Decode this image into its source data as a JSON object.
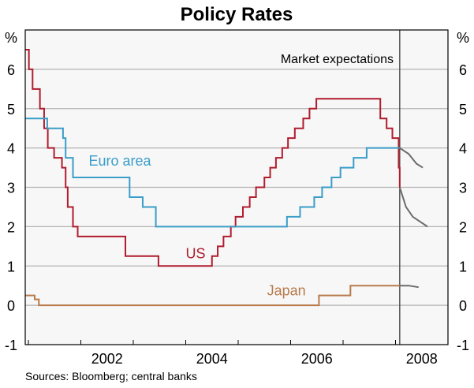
{
  "chart_data": {
    "type": "line",
    "title": "Policy Rates",
    "ylabel_left": "%",
    "ylabel_right": "%",
    "ylim": [
      -1,
      7
    ],
    "xlim": [
      2000.94,
      2009.0
    ],
    "yticks": [
      -1,
      0,
      1,
      2,
      3,
      4,
      5,
      6
    ],
    "xtick_labels": [
      "2002",
      "2004",
      "2006",
      "2008"
    ],
    "xtick_label_positions": [
      2002.5,
      2004.5,
      2006.5,
      2008.5
    ],
    "year_ticks": [
      2001,
      2002,
      2003,
      2004,
      2005,
      2006,
      2007,
      2008
    ],
    "grid": true,
    "source": "Sources: Bloomberg; central banks",
    "divider_x": 2008.08,
    "annotations": {
      "market": "Market expectations"
    },
    "series": [
      {
        "name": "US",
        "color": "#b01c2e",
        "step": true,
        "end": 2008.08,
        "points": [
          [
            2000.94,
            6.5
          ],
          [
            2001.01,
            6.0
          ],
          [
            2001.08,
            5.5
          ],
          [
            2001.22,
            5.0
          ],
          [
            2001.3,
            4.5
          ],
          [
            2001.37,
            4.0
          ],
          [
            2001.49,
            3.75
          ],
          [
            2001.64,
            3.5
          ],
          [
            2001.71,
            3.0
          ],
          [
            2001.75,
            2.5
          ],
          [
            2001.85,
            2.0
          ],
          [
            2001.94,
            1.75
          ],
          [
            2002.85,
            1.25
          ],
          [
            2003.48,
            1.0
          ],
          [
            2004.5,
            1.25
          ],
          [
            2004.61,
            1.5
          ],
          [
            2004.72,
            1.75
          ],
          [
            2004.86,
            2.0
          ],
          [
            2004.95,
            2.25
          ],
          [
            2005.09,
            2.5
          ],
          [
            2005.22,
            2.75
          ],
          [
            2005.34,
            3.0
          ],
          [
            2005.5,
            3.25
          ],
          [
            2005.61,
            3.5
          ],
          [
            2005.72,
            3.75
          ],
          [
            2005.84,
            4.0
          ],
          [
            2005.95,
            4.25
          ],
          [
            2006.08,
            4.5
          ],
          [
            2006.24,
            4.75
          ],
          [
            2006.36,
            5.0
          ],
          [
            2006.49,
            5.25
          ],
          [
            2007.71,
            4.75
          ],
          [
            2007.83,
            4.5
          ],
          [
            2007.94,
            4.25
          ],
          [
            2008.06,
            3.5
          ],
          [
            2008.08,
            3.0
          ]
        ]
      },
      {
        "name": "Euro area",
        "color": "#3a9dc8",
        "step": true,
        "end": 2008.08,
        "points": [
          [
            2000.94,
            4.75
          ],
          [
            2001.36,
            4.5
          ],
          [
            2001.66,
            4.25
          ],
          [
            2001.71,
            3.75
          ],
          [
            2001.85,
            3.25
          ],
          [
            2002.93,
            2.75
          ],
          [
            2003.18,
            2.5
          ],
          [
            2003.43,
            2.0
          ],
          [
            2005.93,
            2.25
          ],
          [
            2006.18,
            2.5
          ],
          [
            2006.45,
            2.75
          ],
          [
            2006.6,
            3.0
          ],
          [
            2006.78,
            3.25
          ],
          [
            2006.95,
            3.5
          ],
          [
            2007.2,
            3.75
          ],
          [
            2007.45,
            4.0
          ]
        ]
      },
      {
        "name": "Japan",
        "color": "#b87a4b",
        "step": true,
        "end": 2008.08,
        "points": [
          [
            2000.94,
            0.25
          ],
          [
            2001.12,
            0.15
          ],
          [
            2001.2,
            0.0
          ],
          [
            2006.54,
            0.25
          ],
          [
            2007.14,
            0.5
          ]
        ]
      },
      {
        "name": "US expectations",
        "color": "#6b6b6b",
        "step": false,
        "points": [
          [
            2008.08,
            3.0
          ],
          [
            2008.2,
            2.5
          ],
          [
            2008.33,
            2.25
          ],
          [
            2008.61,
            2.0
          ]
        ]
      },
      {
        "name": "Euro area expectations",
        "color": "#6b6b6b",
        "step": false,
        "points": [
          [
            2008.08,
            4.0
          ],
          [
            2008.25,
            3.85
          ],
          [
            2008.4,
            3.6
          ],
          [
            2008.52,
            3.5
          ]
        ]
      },
      {
        "name": "Japan expectations",
        "color": "#6b6b6b",
        "step": false,
        "points": [
          [
            2008.08,
            0.5
          ],
          [
            2008.25,
            0.5
          ],
          [
            2008.44,
            0.46
          ]
        ]
      }
    ],
    "series_labels": [
      {
        "text": "Euro area",
        "color": "#3a9dc8",
        "x": 2002.15,
        "y": 3.55
      },
      {
        "text": "US",
        "color": "#b01c2e",
        "x": 2004.0,
        "y": 1.2
      },
      {
        "text": "Japan",
        "color": "#b87a4b",
        "x": 2005.55,
        "y": 0.25
      }
    ]
  }
}
